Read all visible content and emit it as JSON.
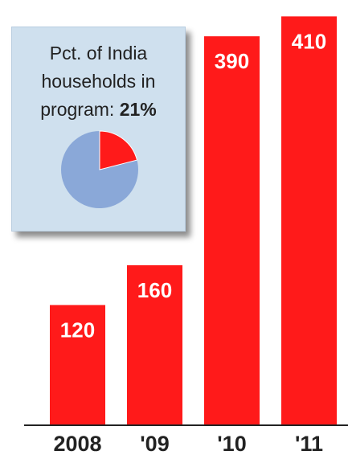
{
  "chart_data": {
    "type": "bar",
    "categories": [
      "2008",
      "'09",
      "'10",
      "'11"
    ],
    "values": [
      120,
      160,
      390,
      410
    ],
    "data_labels": [
      "120",
      "160",
      "390",
      "410"
    ],
    "title": "",
    "xlabel": "",
    "ylabel": "",
    "ylim": [
      0,
      420
    ],
    "grid": false,
    "bar_color": "#ff1a1a",
    "axis_color": "#222222"
  },
  "inset": {
    "title": "Pct. of India households in program:",
    "value_label": "21%",
    "pie": {
      "type": "pie",
      "share": 21,
      "share_color": "#ff1a1a",
      "rest_color": "#8aa8d8"
    }
  }
}
